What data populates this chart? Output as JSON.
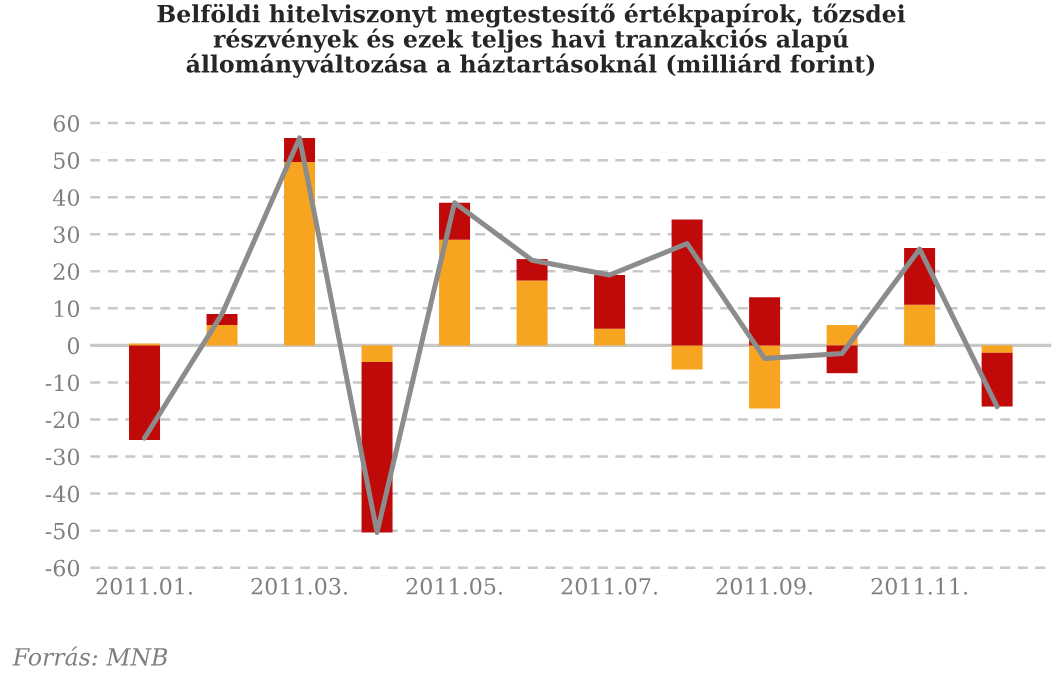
{
  "chart_data": {
    "type": "bar",
    "stacked": true,
    "title": "Belföldi hitelviszonyt megtestesítő értékpapírok, tőzsdei\nrészvények és ezek teljes havi tranzakciós alapú\nállományváltozása a háztartásoknál (milliárd forint)",
    "categories": [
      "2011.01.",
      null,
      "2011.03.",
      null,
      "2011.05.",
      null,
      "2011.07.",
      null,
      "2011.09.",
      null,
      "2011.11.",
      null
    ],
    "series": [
      {
        "color": "#f7a520",
        "values": [
          0.5,
          5.5,
          49.5,
          -4.5,
          28.5,
          17.5,
          4.5,
          -6.5,
          -17,
          5.5,
          11,
          -2
        ]
      },
      {
        "color": "#c00a0a",
        "values": [
          -25.5,
          3,
          6.5,
          -46,
          10,
          5.8,
          14.5,
          34,
          13,
          -7.5,
          15.3,
          -14.5
        ]
      },
      {
        "type": "line",
        "color": "#8c8c8c",
        "values": [
          -25,
          8.5,
          56,
          -50.5,
          38.5,
          23,
          19,
          27.5,
          -3.5,
          -2.2,
          26,
          -16.5
        ]
      }
    ],
    "ylim": [
      -60,
      60
    ],
    "yticks": [
      -60,
      -50,
      -40,
      -30,
      -20,
      -10,
      0,
      10,
      20,
      30,
      40,
      50,
      60
    ],
    "grid": "y",
    "marker": "none",
    "line_style": "solid",
    "annotations": [
      "Forrás: MNB"
    ]
  }
}
